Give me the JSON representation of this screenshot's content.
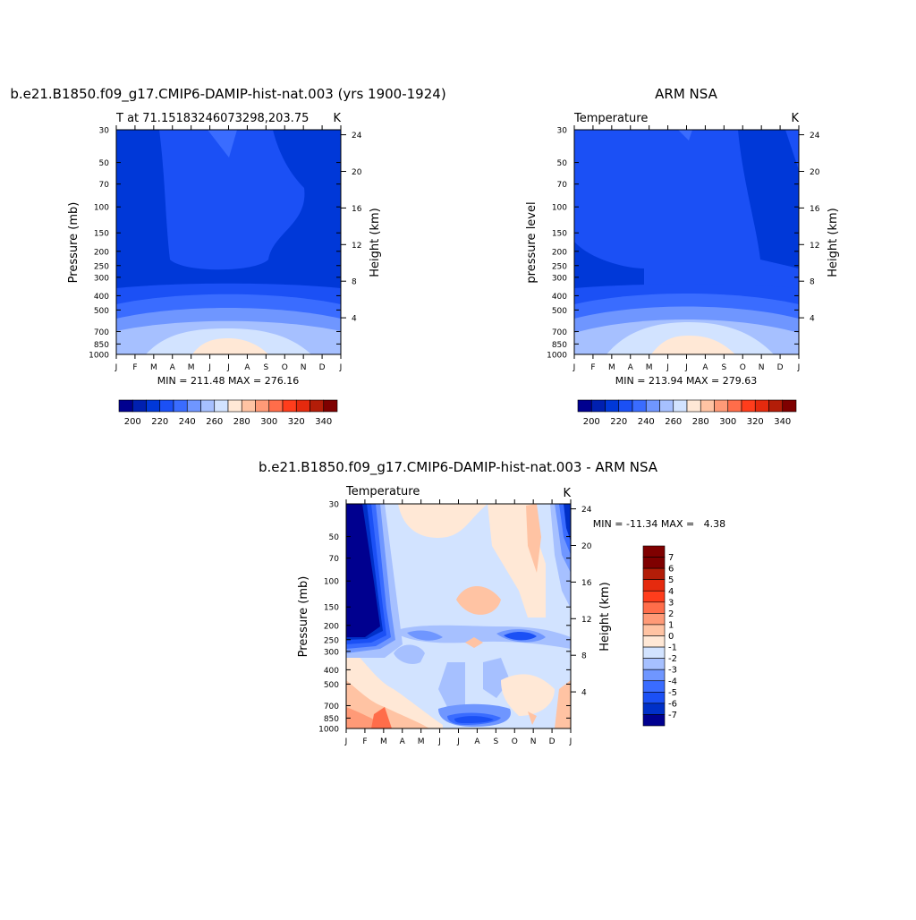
{
  "chart_data": [
    {
      "type": "heatmap",
      "title": "b.e21.B1850.f09_g17.CMIP6-DAMIP-hist-nat.003 (yrs 1900-1924)",
      "subtitle_left": "T at 71.15183246073298,203.75",
      "subtitle_right": "K",
      "ylabel": "Pressure (mb)",
      "y2label": "Height (km)",
      "stats": "MIN = 211.48 MAX = 276.16",
      "x_ticks": [
        "J",
        "F",
        "M",
        "A",
        "M",
        "J",
        "J",
        "A",
        "S",
        "O",
        "N",
        "D",
        "J"
      ],
      "y_ticks": [
        30,
        50,
        70,
        100,
        150,
        200,
        250,
        300,
        400,
        500,
        700,
        850,
        1000
      ],
      "y2_ticks": [
        24,
        20,
        16,
        12,
        8,
        4
      ],
      "ylim": [
        30,
        1000
      ],
      "colorbar_labels": [
        "200",
        "220",
        "240",
        "260",
        "280",
        "300",
        "320",
        "340"
      ]
    },
    {
      "type": "heatmap",
      "title": "ARM NSA",
      "subtitle_left": "Temperature",
      "subtitle_right": "K",
      "ylabel": "pressure level",
      "y2label": "Height (km)",
      "stats": "MIN = 213.94 MAX = 279.63",
      "x_ticks": [
        "J",
        "F",
        "M",
        "A",
        "M",
        "J",
        "J",
        "A",
        "S",
        "O",
        "N",
        "D",
        "J"
      ],
      "y_ticks": [
        30,
        50,
        70,
        100,
        150,
        200,
        250,
        300,
        400,
        500,
        700,
        850,
        1000
      ],
      "y2_ticks": [
        24,
        20,
        16,
        12,
        8,
        4
      ],
      "ylim": [
        30,
        1000
      ],
      "colorbar_labels": [
        "200",
        "220",
        "240",
        "260",
        "280",
        "300",
        "320",
        "340"
      ]
    },
    {
      "type": "heatmap",
      "title": "b.e21.B1850.f09_g17.CMIP6-DAMIP-hist-nat.003 - ARM NSA",
      "subtitle_left": "Temperature",
      "subtitle_right": "K",
      "ylabel": "Pressure (mb)",
      "y2label": "Height (km)",
      "stats": "MIN = -11.34 MAX =   4.38",
      "x_ticks": [
        "J",
        "F",
        "M",
        "A",
        "M",
        "J",
        "J",
        "A",
        "S",
        "O",
        "N",
        "D",
        "J"
      ],
      "y_ticks": [
        30,
        50,
        70,
        100,
        150,
        200,
        250,
        300,
        400,
        500,
        700,
        850,
        1000
      ],
      "y2_ticks": [
        24,
        20,
        16,
        12,
        8,
        4
      ],
      "ylim": [
        30,
        1000
      ],
      "colorbar_labels": [
        "7",
        "6",
        "5",
        "4",
        "3",
        "2",
        "1",
        "0",
        "-1",
        "-2",
        "-3",
        "-4",
        "-5",
        "-6",
        "-7"
      ]
    }
  ],
  "colors": {
    "abs_scale": [
      "#00008f",
      "#0020b0",
      "#0038d8",
      "#1b50f5",
      "#3a6cff",
      "#6f96ff",
      "#a6c0ff",
      "#d2e3ff",
      "#ffe8d6",
      "#ffc3a3",
      "#ff9a77",
      "#ff6d4a",
      "#ff3d1c",
      "#e52a0e",
      "#b31d08",
      "#7f0000"
    ],
    "diff_scale": [
      "#7f0000",
      "#b31d08",
      "#e52a0e",
      "#ff3d1c",
      "#ff6d4a",
      "#ff9a77",
      "#ffc3a3",
      "#ffe8d6",
      "#d2e3ff",
      "#a6c0ff",
      "#6f96ff",
      "#3a6cff",
      "#1b50f5",
      "#0030c8",
      "#00008f"
    ]
  }
}
